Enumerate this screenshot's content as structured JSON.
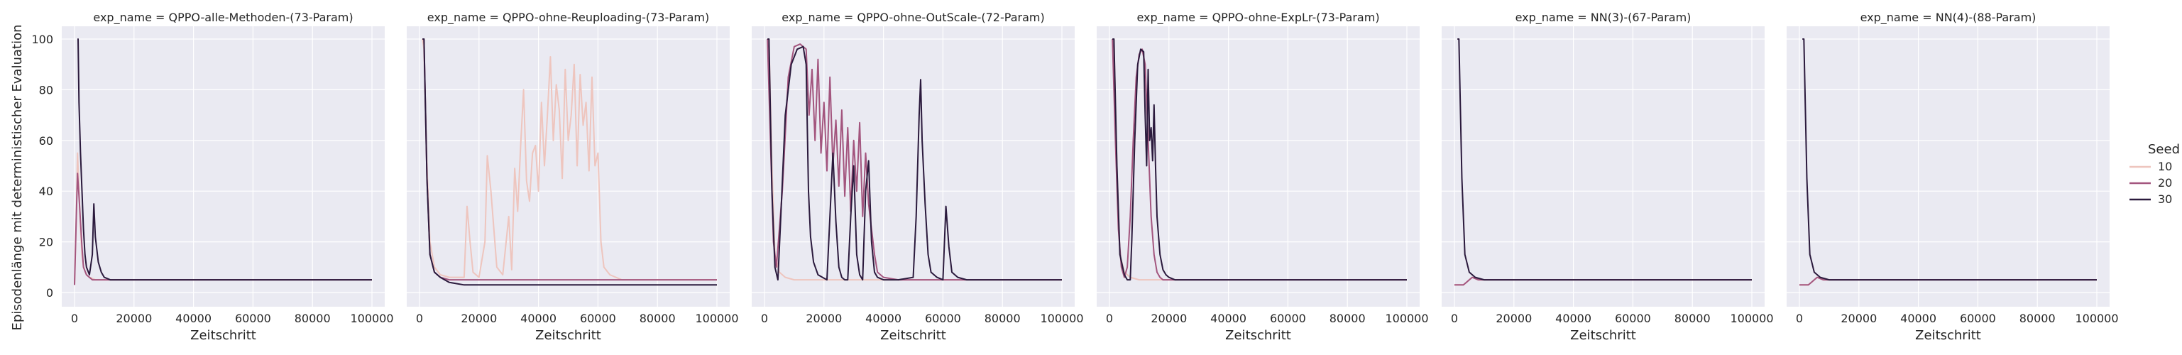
{
  "figure": {
    "ylabel": "Episodenlänge mit deterministischer Evaluation",
    "xlabel": "Zeitschritt",
    "colors": {
      "panel_bg": "#EAEAF2",
      "grid": "#FFFFFF",
      "text": "#262626"
    }
  },
  "legend": {
    "title": "Seed",
    "entries": [
      {
        "label": "10",
        "color": "#EEC5BE"
      },
      {
        "label": "20",
        "color": "#A3557E"
      },
      {
        "label": "30",
        "color": "#2B1A3D"
      }
    ]
  },
  "chart_data": [
    {
      "type": "line",
      "title": "exp_name = QPPO-alle-Methoden-(73-Param)",
      "xlabel": "Zeitschritt",
      "ylabel": "Episodenlänge mit deterministischer Evaluation",
      "xlim": [
        0,
        100000
      ],
      "ylim": [
        0,
        100
      ],
      "xticks": [
        0,
        20000,
        40000,
        60000,
        80000,
        100000
      ],
      "yticks": [
        0,
        20,
        40,
        60,
        80,
        100
      ],
      "grid": true,
      "series": [
        {
          "name": "10",
          "color": "#EEC5BE",
          "x": [
            0,
            600,
            1000,
            1500,
            2000,
            2500,
            3000,
            4000,
            5000,
            7000,
            10000,
            20000,
            100000
          ],
          "y": [
            3,
            30,
            55,
            40,
            25,
            15,
            10,
            7,
            6,
            5,
            5,
            5,
            5
          ]
        },
        {
          "name": "20",
          "color": "#A3557E",
          "x": [
            0,
            600,
            1000,
            1500,
            2000,
            2500,
            3000,
            4000,
            5000,
            6000,
            8000,
            100000
          ],
          "y": [
            3,
            30,
            47,
            38,
            28,
            18,
            10,
            7,
            6,
            5,
            5,
            5
          ]
        },
        {
          "name": "30",
          "color": "#2B1A3D",
          "x": [
            1000,
            1200,
            1500,
            2000,
            2500,
            3000,
            3500,
            4000,
            5000,
            6000,
            6500,
            7000,
            8000,
            9000,
            10000,
            12000,
            15000,
            100000
          ],
          "y": [
            100,
            100,
            75,
            55,
            40,
            25,
            15,
            10,
            7,
            15,
            35,
            22,
            12,
            8,
            6,
            5,
            5,
            5
          ]
        }
      ]
    },
    {
      "type": "line",
      "title": "exp_name = QPPO-ohne-Reuploading-(73-Param)",
      "xlabel": "Zeitschritt",
      "xlim": [
        0,
        100000
      ],
      "ylim": [
        0,
        100
      ],
      "xticks": [
        0,
        20000,
        40000,
        60000,
        80000,
        100000
      ],
      "yticks": [
        0,
        20,
        40,
        60,
        80,
        100
      ],
      "grid": true,
      "series": [
        {
          "name": "10",
          "color": "#EEC5BE",
          "x": [
            1000,
            1500,
            2500,
            3500,
            5000,
            7000,
            10000,
            15000,
            16000,
            17000,
            18000,
            20000,
            22000,
            22800,
            24000,
            26000,
            28000,
            30000,
            31000,
            32000,
            33000,
            34000,
            35000,
            36000,
            37000,
            38000,
            39000,
            40000,
            41000,
            42000,
            43000,
            44000,
            45000,
            46000,
            47000,
            48000,
            49000,
            50000,
            51000,
            52000,
            53000,
            54000,
            55000,
            56000,
            57000,
            58000,
            59000,
            60000,
            61000,
            62000,
            64000,
            68000,
            100000
          ],
          "y": [
            100,
            96,
            50,
            20,
            10,
            7,
            6,
            6,
            34,
            20,
            8,
            6,
            20,
            54,
            40,
            10,
            7,
            30,
            9,
            49,
            32,
            58,
            80,
            44,
            36,
            55,
            58,
            40,
            75,
            50,
            70,
            93,
            60,
            82,
            72,
            45,
            88,
            60,
            70,
            90,
            50,
            86,
            66,
            75,
            48,
            85,
            50,
            55,
            20,
            10,
            7,
            5,
            5
          ]
        },
        {
          "name": "20",
          "color": "#A3557E",
          "x": [
            1000,
            1500,
            2500,
            3500,
            5000,
            7000,
            10000,
            15000,
            100000
          ],
          "y": [
            100,
            100,
            45,
            15,
            8,
            6,
            5,
            5,
            5
          ]
        },
        {
          "name": "30",
          "color": "#2B1A3D",
          "x": [
            1000,
            1500,
            2500,
            3500,
            5000,
            7000,
            10000,
            15000,
            20000,
            100000
          ],
          "y": [
            100,
            100,
            45,
            15,
            8,
            6,
            4,
            3,
            3,
            3
          ]
        }
      ]
    },
    {
      "type": "line",
      "title": "exp_name = QPPO-ohne-OutScale-(72-Param)",
      "xlabel": "Zeitschritt",
      "xlim": [
        0,
        100000
      ],
      "ylim": [
        0,
        100
      ],
      "xticks": [
        0,
        20000,
        40000,
        60000,
        80000,
        100000
      ],
      "yticks": [
        0,
        20,
        40,
        60,
        80,
        100
      ],
      "grid": true,
      "series": [
        {
          "name": "10",
          "color": "#EEC5BE",
          "x": [
            1000,
            1500,
            2500,
            3500,
            5000,
            7000,
            10000,
            100000
          ],
          "y": [
            100,
            100,
            50,
            15,
            8,
            6,
            5,
            5
          ]
        },
        {
          "name": "20",
          "color": "#A3557E",
          "x": [
            1000,
            2000,
            3000,
            4000,
            6000,
            8000,
            10000,
            12000,
            14000,
            15000,
            16000,
            17000,
            18000,
            19000,
            20000,
            21000,
            22000,
            23000,
            24000,
            25000,
            26000,
            27000,
            28000,
            29000,
            30000,
            31000,
            32000,
            33000,
            34000,
            35000,
            36000,
            37000,
            38000,
            40000,
            45000,
            100000
          ],
          "y": [
            100,
            60,
            20,
            10,
            40,
            85,
            97,
            98,
            96,
            70,
            88,
            60,
            92,
            55,
            75,
            48,
            85,
            50,
            68,
            42,
            72,
            38,
            65,
            32,
            60,
            40,
            67,
            30,
            55,
            35,
            25,
            15,
            8,
            6,
            5,
            5
          ]
        },
        {
          "name": "30",
          "color": "#2B1A3D",
          "x": [
            1000,
            1500,
            2500,
            3500,
            4500,
            5500,
            7000,
            9000,
            11000,
            13000,
            14000,
            14800,
            15500,
            16500,
            18000,
            19500,
            21000,
            22000,
            23000,
            24000,
            25000,
            26000,
            27000,
            28000,
            29000,
            30000,
            31000,
            32000,
            33000,
            34000,
            35000,
            36000,
            37000,
            38000,
            40000,
            45000,
            50000,
            51000,
            52000,
            52500,
            53000,
            54000,
            55000,
            56000,
            58000,
            60000,
            61000,
            62000,
            63000,
            65000,
            68000,
            100000
          ],
          "y": [
            100,
            100,
            40,
            10,
            5,
            30,
            70,
            90,
            96,
            97,
            90,
            40,
            22,
            12,
            7,
            6,
            5,
            30,
            55,
            28,
            10,
            6,
            5,
            5,
            30,
            50,
            15,
            7,
            5,
            40,
            52,
            20,
            8,
            6,
            5,
            5,
            6,
            30,
            70,
            84,
            60,
            35,
            15,
            8,
            6,
            5,
            34,
            18,
            8,
            6,
            5,
            5
          ]
        }
      ]
    },
    {
      "type": "line",
      "title": "exp_name = QPPO-ohne-ExpLr-(73-Param)",
      "xlabel": "Zeitschritt",
      "xlim": [
        0,
        100000
      ],
      "ylim": [
        0,
        100
      ],
      "xticks": [
        0,
        20000,
        40000,
        60000,
        80000,
        100000
      ],
      "yticks": [
        0,
        20,
        40,
        60,
        80,
        100
      ],
      "grid": true,
      "series": [
        {
          "name": "10",
          "color": "#EEC5BE",
          "x": [
            1000,
            1500,
            2500,
            3500,
            5000,
            7000,
            10000,
            100000
          ],
          "y": [
            100,
            100,
            50,
            15,
            8,
            6,
            5,
            5
          ]
        },
        {
          "name": "20",
          "color": "#A3557E",
          "x": [
            1000,
            2000,
            3000,
            4000,
            5000,
            6000,
            7000,
            8000,
            9000,
            10000,
            11000,
            12000,
            13000,
            14000,
            15000,
            16000,
            17000,
            18000,
            20000,
            25000,
            100000
          ],
          "y": [
            100,
            60,
            25,
            10,
            6,
            10,
            30,
            60,
            85,
            94,
            96,
            90,
            60,
            30,
            15,
            8,
            6,
            5,
            5,
            5,
            5
          ]
        },
        {
          "name": "30",
          "color": "#2B1A3D",
          "x": [
            1000,
            1500,
            2500,
            3500,
            5000,
            6000,
            7000,
            7500,
            8500,
            9500,
            10500,
            11500,
            12000,
            12500,
            13000,
            13500,
            14000,
            14500,
            15000,
            15500,
            16000,
            17000,
            18000,
            19000,
            20000,
            22000,
            25000,
            100000
          ],
          "y": [
            100,
            100,
            50,
            15,
            7,
            5,
            5,
            20,
            60,
            90,
            96,
            95,
            70,
            50,
            88,
            60,
            65,
            52,
            74,
            50,
            30,
            15,
            9,
            7,
            6,
            5,
            5,
            5
          ]
        }
      ]
    },
    {
      "type": "line",
      "title": "exp_name = NN(3)-(67-Param)",
      "xlabel": "Zeitschritt",
      "xlim": [
        0,
        100000
      ],
      "ylim": [
        0,
        100
      ],
      "xticks": [
        0,
        20000,
        40000,
        60000,
        80000,
        100000
      ],
      "yticks": [
        0,
        20,
        40,
        60,
        80,
        100
      ],
      "grid": true,
      "series": [
        {
          "name": "10",
          "color": "#EEC5BE",
          "x": [
            0,
            3000,
            4000,
            5000,
            6000,
            8000,
            10000,
            100000
          ],
          "y": [
            3,
            3,
            4,
            5,
            6,
            5,
            5,
            5
          ]
        },
        {
          "name": "20",
          "color": "#A3557E",
          "x": [
            0,
            3000,
            4000,
            5000,
            6000,
            8000,
            10000,
            100000
          ],
          "y": [
            3,
            3,
            4,
            5,
            6,
            5,
            5,
            5
          ]
        },
        {
          "name": "30",
          "color": "#2B1A3D",
          "x": [
            1000,
            1500,
            2500,
            3500,
            5000,
            7000,
            10000,
            100000
          ],
          "y": [
            100,
            100,
            45,
            15,
            8,
            6,
            5,
            5
          ]
        }
      ]
    },
    {
      "type": "line",
      "title": "exp_name = NN(4)-(88-Param)",
      "xlabel": "Zeitschritt",
      "xlim": [
        0,
        100000
      ],
      "ylim": [
        0,
        100
      ],
      "xticks": [
        0,
        20000,
        40000,
        60000,
        80000,
        100000
      ],
      "yticks": [
        0,
        20,
        40,
        60,
        80,
        100
      ],
      "grid": true,
      "series": [
        {
          "name": "10",
          "color": "#EEC5BE",
          "x": [
            0,
            3000,
            4000,
            5000,
            6000,
            8000,
            10000,
            100000
          ],
          "y": [
            3,
            3,
            4,
            5,
            6,
            5,
            5,
            5
          ]
        },
        {
          "name": "20",
          "color": "#A3557E",
          "x": [
            0,
            3000,
            4000,
            5000,
            6000,
            8000,
            10000,
            100000
          ],
          "y": [
            3,
            3,
            4,
            5,
            6,
            5,
            5,
            5
          ]
        },
        {
          "name": "30",
          "color": "#2B1A3D",
          "x": [
            1000,
            1500,
            2500,
            3500,
            5000,
            7000,
            10000,
            100000
          ],
          "y": [
            100,
            100,
            45,
            15,
            8,
            6,
            5,
            5
          ]
        }
      ]
    }
  ]
}
